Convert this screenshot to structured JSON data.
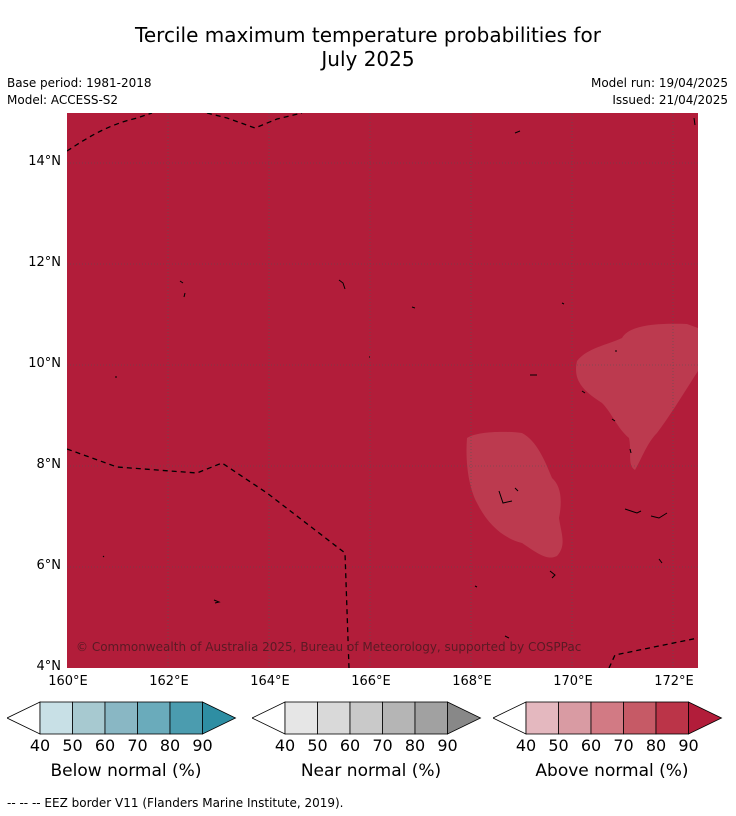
{
  "title_line1": "Tercile maximum temperature probabilities for",
  "title_line2": "July 2025",
  "base_period": "Base period: 1981-2018",
  "model": "Model: ACCESS-S2",
  "model_run": "Model run: 19/04/2025",
  "issued": "Issued: 21/04/2025",
  "copyright": "© Commonwealth of Australia 2025, Bureau of Meteorology, supported by COSPPac",
  "lat_labels": [
    "14°N",
    "12°N",
    "10°N",
    "8°N",
    "6°N",
    "4°N"
  ],
  "lon_labels": [
    "160°E",
    "162°E",
    "164°E",
    "166°E",
    "168°E",
    "170°E",
    "172°E"
  ],
  "colorbars": [
    {
      "title": "Below normal (%)",
      "ticks": [
        "40",
        "50",
        "60",
        "70",
        "80",
        "90"
      ],
      "colors": [
        "#ffffff",
        "#c8e0e6",
        "#a7c9d0",
        "#89b7c4",
        "#6aabbb",
        "#4b9caf",
        "#2e8ea3"
      ]
    },
    {
      "title": "Near normal (%)",
      "ticks": [
        "40",
        "50",
        "60",
        "70",
        "80",
        "90"
      ],
      "colors": [
        "#ffffff",
        "#e6e6e6",
        "#d9d9d9",
        "#c9c9c9",
        "#b5b5b5",
        "#a1a1a1",
        "#888888"
      ]
    },
    {
      "title": "Above normal (%)",
      "ticks": [
        "40",
        "50",
        "60",
        "70",
        "80",
        "90"
      ],
      "colors": [
        "#ffffff",
        "#e4b8bf",
        "#d99ba3",
        "#d27a84",
        "#c65a66",
        "#bb3448",
        "#b21d3a"
      ]
    }
  ],
  "footer": "--  --  -- EEZ border V11 (Flanders Marine Institute, 2019).",
  "map_colors": {
    "main": "#b21d3a",
    "patch": "#bc3a4f"
  }
}
